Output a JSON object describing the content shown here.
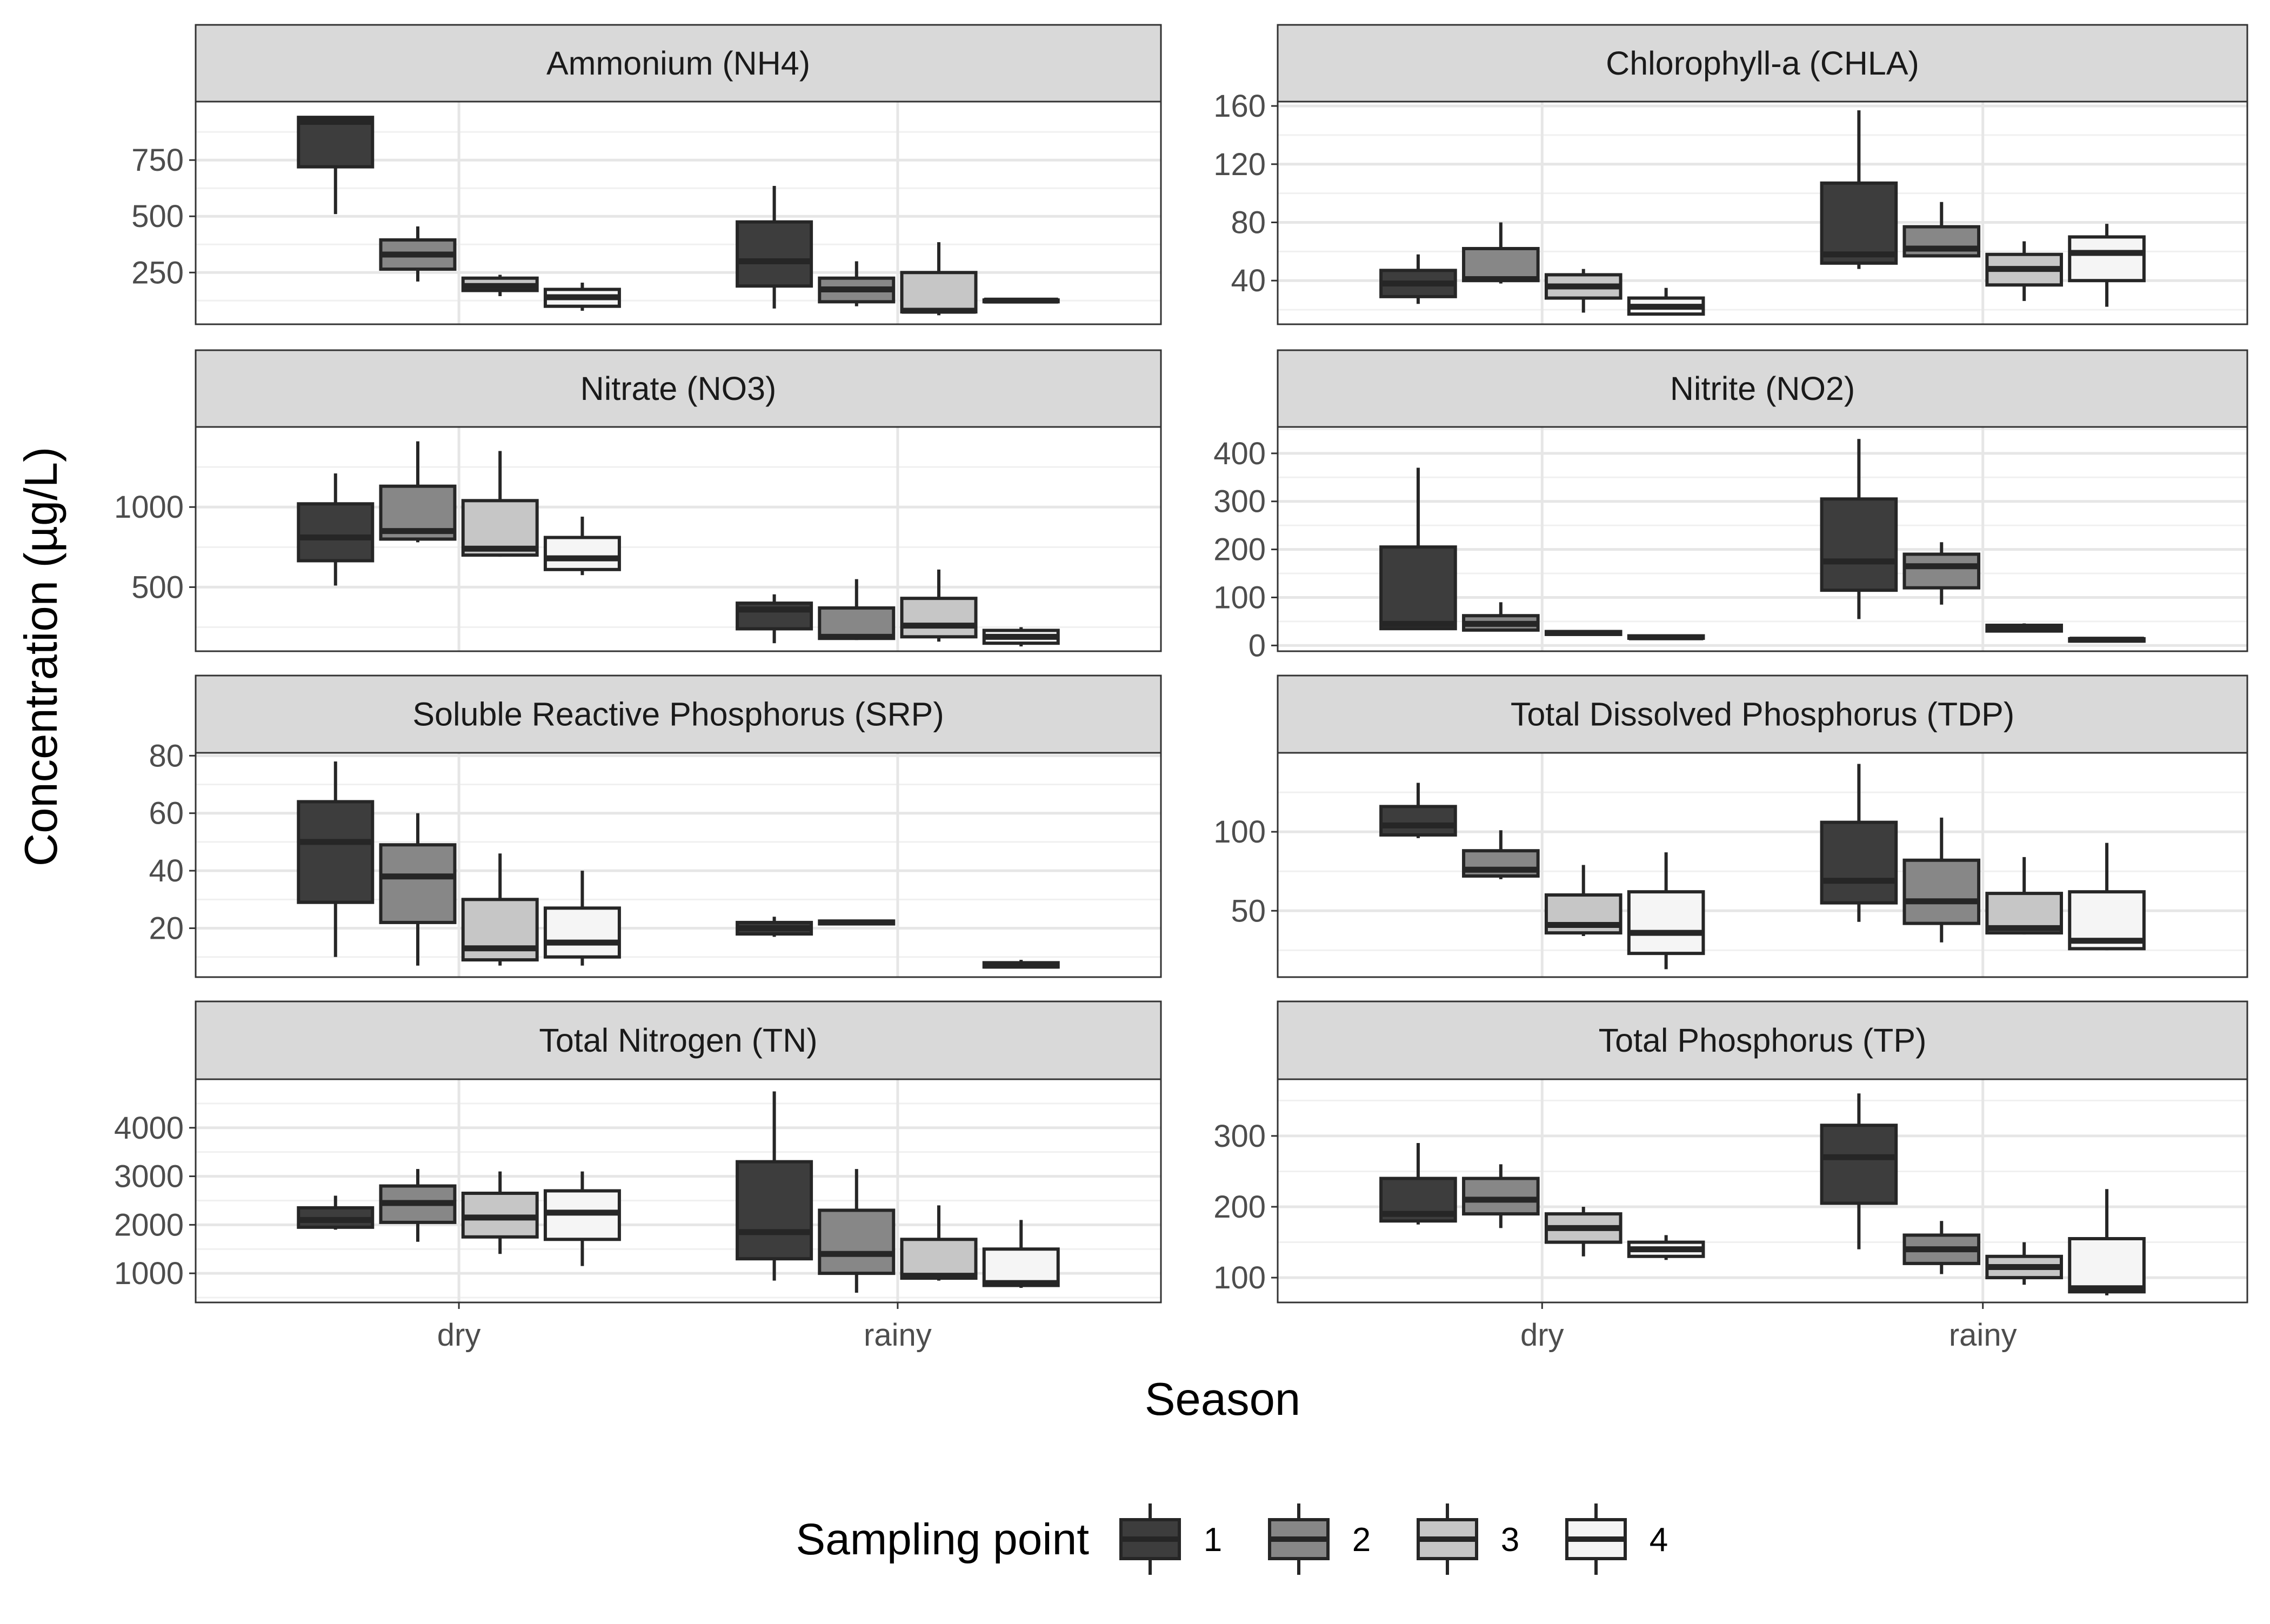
{
  "chart_data": {
    "type": "boxplot",
    "facet_layout": "2 columns x 4 rows, free y scales",
    "x_categories": [
      "dry",
      "rainy"
    ],
    "xlabel": "Season",
    "ylabel": "Concentration (µg/L)",
    "legend": {
      "title": "Sampling point",
      "position": "bottom",
      "entries": [
        {
          "label": "1",
          "color": "#3d3d3d"
        },
        {
          "label": "2",
          "color": "#878787"
        },
        {
          "label": "3",
          "color": "#c6c6c6"
        },
        {
          "label": "4",
          "color": "#f5f5f5"
        }
      ]
    },
    "grid": true,
    "panels": [
      {
        "title": "Ammonium (NH4)",
        "ylim": [
          20,
          1010
        ],
        "yticks": [
          250,
          500,
          750
        ],
        "boxes": [
          {
            "season": "dry",
            "point": "1",
            "min": 510,
            "q1": 720,
            "median": 920,
            "q3": 940,
            "max": 940
          },
          {
            "season": "dry",
            "point": "2",
            "min": 210,
            "q1": 265,
            "median": 330,
            "q3": 395,
            "max": 455
          },
          {
            "season": "dry",
            "point": "3",
            "min": 145,
            "q1": 170,
            "median": 190,
            "q3": 225,
            "max": 240
          },
          {
            "season": "dry",
            "point": "4",
            "min": 80,
            "q1": 100,
            "median": 140,
            "q3": 175,
            "max": 205
          },
          {
            "season": "rainy",
            "point": "1",
            "min": 90,
            "q1": 190,
            "median": 300,
            "q3": 475,
            "max": 635
          },
          {
            "season": "rainy",
            "point": "2",
            "min": 100,
            "q1": 120,
            "median": 175,
            "q3": 225,
            "max": 300
          },
          {
            "season": "rainy",
            "point": "3",
            "min": 60,
            "q1": 75,
            "median": 80,
            "q3": 250,
            "max": 385
          },
          {
            "season": "rainy",
            "point": "4",
            "min": 115,
            "q1": 120,
            "median": 125,
            "q3": 128,
            "max": 130
          }
        ]
      },
      {
        "title": "Chlorophyll-a (CHLA)",
        "ylim": [
          10,
          163
        ],
        "yticks": [
          40,
          80,
          120,
          160
        ],
        "boxes": [
          {
            "season": "dry",
            "point": "1",
            "min": 24,
            "q1": 29,
            "median": 38,
            "q3": 47,
            "max": 58
          },
          {
            "season": "dry",
            "point": "2",
            "min": 38,
            "q1": 40,
            "median": 41,
            "q3": 62,
            "max": 80
          },
          {
            "season": "dry",
            "point": "3",
            "min": 18,
            "q1": 28,
            "median": 36,
            "q3": 44,
            "max": 48
          },
          {
            "season": "dry",
            "point": "4",
            "min": 16,
            "q1": 17,
            "median": 22,
            "q3": 28,
            "max": 35
          },
          {
            "season": "rainy",
            "point": "1",
            "min": 48,
            "q1": 52,
            "median": 58,
            "q3": 107,
            "max": 157
          },
          {
            "season": "rainy",
            "point": "2",
            "min": 56,
            "q1": 57,
            "median": 62,
            "q3": 77,
            "max": 94
          },
          {
            "season": "rainy",
            "point": "3",
            "min": 26,
            "q1": 37,
            "median": 48,
            "q3": 58,
            "max": 67
          },
          {
            "season": "rainy",
            "point": "4",
            "min": 22,
            "q1": 40,
            "median": 59,
            "q3": 70,
            "max": 79
          }
        ]
      },
      {
        "title": "Nitrate (NO3)",
        "ylim": [
          100,
          1500
        ],
        "yticks": [
          500,
          1000
        ],
        "boxes": [
          {
            "season": "dry",
            "point": "1",
            "min": 510,
            "q1": 665,
            "median": 810,
            "q3": 1020,
            "max": 1210
          },
          {
            "season": "dry",
            "point": "2",
            "min": 780,
            "q1": 800,
            "median": 850,
            "q3": 1130,
            "max": 1410
          },
          {
            "season": "dry",
            "point": "3",
            "min": 690,
            "q1": 700,
            "median": 740,
            "q3": 1040,
            "max": 1350
          },
          {
            "season": "dry",
            "point": "4",
            "min": 575,
            "q1": 610,
            "median": 680,
            "q3": 810,
            "max": 940
          },
          {
            "season": "rainy",
            "point": "1",
            "min": 150,
            "q1": 240,
            "median": 360,
            "q3": 400,
            "max": 455
          },
          {
            "season": "rainy",
            "point": "2",
            "min": 170,
            "q1": 180,
            "median": 190,
            "q3": 370,
            "max": 550
          },
          {
            "season": "rainy",
            "point": "3",
            "min": 160,
            "q1": 190,
            "median": 260,
            "q3": 430,
            "max": 610
          },
          {
            "season": "rainy",
            "point": "4",
            "min": 130,
            "q1": 150,
            "median": 190,
            "q3": 230,
            "max": 250
          }
        ]
      },
      {
        "title": "Nitrite (NO2)",
        "ylim": [
          -12,
          455
        ],
        "yticks": [
          0,
          100,
          200,
          300,
          400
        ],
        "boxes": [
          {
            "season": "dry",
            "point": "1",
            "min": 35,
            "q1": 35,
            "median": 45,
            "q3": 205,
            "max": 370
          },
          {
            "season": "dry",
            "point": "2",
            "min": 30,
            "q1": 32,
            "median": 45,
            "q3": 62,
            "max": 90
          },
          {
            "season": "dry",
            "point": "3",
            "min": 22,
            "q1": 23,
            "median": 26,
            "q3": 29,
            "max": 30
          },
          {
            "season": "dry",
            "point": "4",
            "min": 14,
            "q1": 15,
            "median": 17,
            "q3": 20,
            "max": 21
          },
          {
            "season": "rainy",
            "point": "1",
            "min": 55,
            "q1": 115,
            "median": 175,
            "q3": 305,
            "max": 430
          },
          {
            "season": "rainy",
            "point": "2",
            "min": 85,
            "q1": 120,
            "median": 165,
            "q3": 190,
            "max": 215
          },
          {
            "season": "rainy",
            "point": "3",
            "min": 28,
            "q1": 30,
            "median": 38,
            "q3": 42,
            "max": 46
          },
          {
            "season": "rainy",
            "point": "4",
            "min": 8,
            "q1": 9,
            "median": 12,
            "q3": 14,
            "max": 15
          }
        ]
      },
      {
        "title": "Soluble Reactive Phosphorus (SRP)",
        "ylim": [
          3,
          81
        ],
        "yticks": [
          20,
          40,
          60,
          80
        ],
        "boxes": [
          {
            "season": "dry",
            "point": "1",
            "min": 10,
            "q1": 29,
            "median": 50,
            "q3": 64,
            "max": 78
          },
          {
            "season": "dry",
            "point": "2",
            "min": 7,
            "q1": 22,
            "median": 38,
            "q3": 49,
            "max": 60
          },
          {
            "season": "dry",
            "point": "3",
            "min": 7,
            "q1": 9,
            "median": 13,
            "q3": 30,
            "max": 46
          },
          {
            "season": "dry",
            "point": "4",
            "min": 7,
            "q1": 10,
            "median": 15,
            "q3": 27,
            "max": 40
          },
          {
            "season": "rainy",
            "point": "1",
            "min": 17,
            "q1": 18,
            "median": 20,
            "q3": 22,
            "max": 24
          },
          {
            "season": "rainy",
            "point": "2",
            "min": 21,
            "q1": 21.5,
            "median": 22,
            "q3": 22.5,
            "max": 23
          },
          {
            "season": "rainy",
            "point": "4",
            "min": 6,
            "q1": 6.5,
            "median": 7,
            "q3": 8,
            "max": 9
          }
        ]
      },
      {
        "title": "Total Dissolved Phosphorus (TDP)",
        "ylim": [
          8,
          150
        ],
        "yticks": [
          50,
          100
        ],
        "boxes": [
          {
            "season": "dry",
            "point": "1",
            "min": 96,
            "q1": 98,
            "median": 104,
            "q3": 116,
            "max": 131
          },
          {
            "season": "dry",
            "point": "2",
            "min": 70,
            "q1": 72,
            "median": 76,
            "q3": 88,
            "max": 101
          },
          {
            "season": "dry",
            "point": "3",
            "min": 34,
            "q1": 36,
            "median": 41,
            "q3": 60,
            "max": 79
          },
          {
            "season": "dry",
            "point": "4",
            "min": 13,
            "q1": 23,
            "median": 36,
            "q3": 62,
            "max": 87
          },
          {
            "season": "rainy",
            "point": "1",
            "min": 43,
            "q1": 55,
            "median": 69,
            "q3": 106,
            "max": 143
          },
          {
            "season": "rainy",
            "point": "2",
            "min": 30,
            "q1": 42,
            "median": 56,
            "q3": 82,
            "max": 109
          },
          {
            "season": "rainy",
            "point": "3",
            "min": 35,
            "q1": 36,
            "median": 39,
            "q3": 61,
            "max": 84
          },
          {
            "season": "rainy",
            "point": "4",
            "min": 25,
            "q1": 26,
            "median": 31,
            "q3": 62,
            "max": 93
          }
        ]
      },
      {
        "title": "Total Nitrogen (TN)",
        "ylim": [
          400,
          5000
        ],
        "yticks": [
          1000,
          2000,
          3000,
          4000
        ],
        "boxes": [
          {
            "season": "dry",
            "point": "1",
            "min": 1900,
            "q1": 1950,
            "median": 2100,
            "q3": 2350,
            "max": 2600
          },
          {
            "season": "dry",
            "point": "2",
            "min": 1650,
            "q1": 2050,
            "median": 2450,
            "q3": 2800,
            "max": 3150
          },
          {
            "season": "dry",
            "point": "3",
            "min": 1400,
            "q1": 1750,
            "median": 2150,
            "q3": 2650,
            "max": 3100
          },
          {
            "season": "dry",
            "point": "4",
            "min": 1150,
            "q1": 1700,
            "median": 2250,
            "q3": 2700,
            "max": 3100
          },
          {
            "season": "rainy",
            "point": "1",
            "min": 850,
            "q1": 1300,
            "median": 1850,
            "q3": 3300,
            "max": 4750
          },
          {
            "season": "rainy",
            "point": "2",
            "min": 600,
            "q1": 1000,
            "median": 1400,
            "q3": 2300,
            "max": 3150
          },
          {
            "season": "rainy",
            "point": "3",
            "min": 850,
            "q1": 900,
            "median": 950,
            "q3": 1700,
            "max": 2400
          },
          {
            "season": "rainy",
            "point": "4",
            "min": 700,
            "q1": 750,
            "median": 800,
            "q3": 1500,
            "max": 2100
          }
        ]
      },
      {
        "title": "Total Phosphorus (TP)",
        "ylim": [
          65,
          380
        ],
        "yticks": [
          100,
          200,
          300
        ],
        "boxes": [
          {
            "season": "dry",
            "point": "1",
            "min": 175,
            "q1": 180,
            "median": 190,
            "q3": 240,
            "max": 290
          },
          {
            "season": "dry",
            "point": "2",
            "min": 170,
            "q1": 190,
            "median": 210,
            "q3": 240,
            "max": 260
          },
          {
            "season": "dry",
            "point": "3",
            "min": 130,
            "q1": 150,
            "median": 170,
            "q3": 190,
            "max": 200
          },
          {
            "season": "dry",
            "point": "4",
            "min": 125,
            "q1": 130,
            "median": 140,
            "q3": 150,
            "max": 160
          },
          {
            "season": "rainy",
            "point": "1",
            "min": 140,
            "q1": 205,
            "median": 270,
            "q3": 315,
            "max": 360
          },
          {
            "season": "rainy",
            "point": "2",
            "min": 105,
            "q1": 120,
            "median": 140,
            "q3": 160,
            "max": 180
          },
          {
            "season": "rainy",
            "point": "3",
            "min": 90,
            "q1": 100,
            "median": 115,
            "q3": 130,
            "max": 150
          },
          {
            "season": "rainy",
            "point": "4",
            "min": 75,
            "q1": 80,
            "median": 85,
            "q3": 155,
            "max": 225
          }
        ]
      }
    ]
  }
}
